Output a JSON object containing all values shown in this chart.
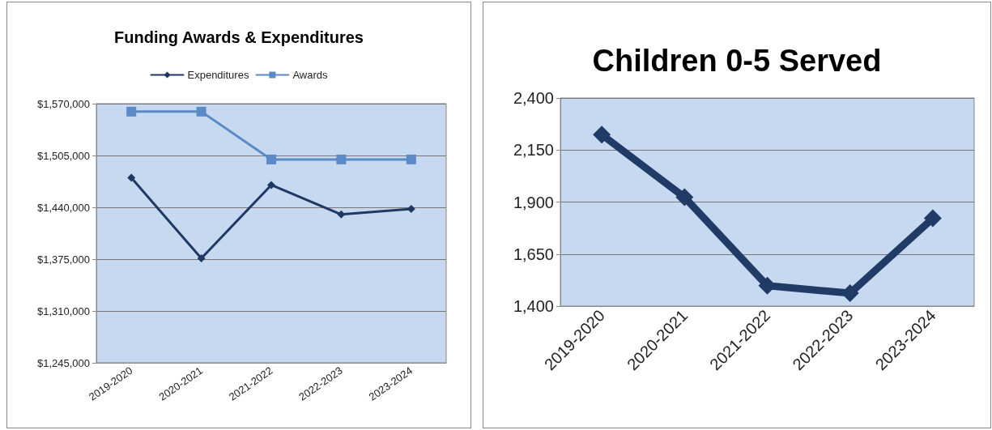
{
  "chart_data": [
    {
      "type": "line",
      "title": "Funding Awards & Expenditures",
      "categories": [
        "2019-2020",
        "2020-2021",
        "2021-2022",
        "2022-2023",
        "2023-2024"
      ],
      "series": [
        {
          "name": "Expenditures",
          "color": "#1f3864",
          "marker": "diamond",
          "values": [
            1477000,
            1376000,
            1468000,
            1431000,
            1438000
          ]
        },
        {
          "name": "Awards",
          "color": "#5b8ac6",
          "marker": "square",
          "values": [
            1560000,
            1560000,
            1500000,
            1500000,
            1500000
          ]
        }
      ],
      "ylim": [
        1245000,
        1570000
      ],
      "yticks": [
        {
          "value": 1245000,
          "label": "$1,245,000"
        },
        {
          "value": 1310000,
          "label": "$1,310,000"
        },
        {
          "value": 1375000,
          "label": "$1,375,000"
        },
        {
          "value": 1440000,
          "label": "$1,440,000"
        },
        {
          "value": 1505000,
          "label": "$1,505,000"
        },
        {
          "value": 1570000,
          "label": "$1,570,000"
        }
      ],
      "grid": "y",
      "legend": "top"
    },
    {
      "type": "line",
      "title": "Children 0-5 Served",
      "categories": [
        "2019-2020",
        "2020-2021",
        "2021-2022",
        "2022-2023",
        "2023-2024"
      ],
      "series": [
        {
          "color": "#1f3b66",
          "marker": "diamond",
          "values": [
            2224,
            1923,
            1498,
            1462,
            1822
          ]
        }
      ],
      "ylim": [
        1400,
        2400
      ],
      "yticks": [
        {
          "value": 1400,
          "label": "1,400"
        },
        {
          "value": 1650,
          "label": "1,650"
        },
        {
          "value": 1900,
          "label": "1,900"
        },
        {
          "value": 2150,
          "label": "2,150"
        },
        {
          "value": 2400,
          "label": "2,400"
        }
      ],
      "grid": "y",
      "legend": false
    }
  ]
}
